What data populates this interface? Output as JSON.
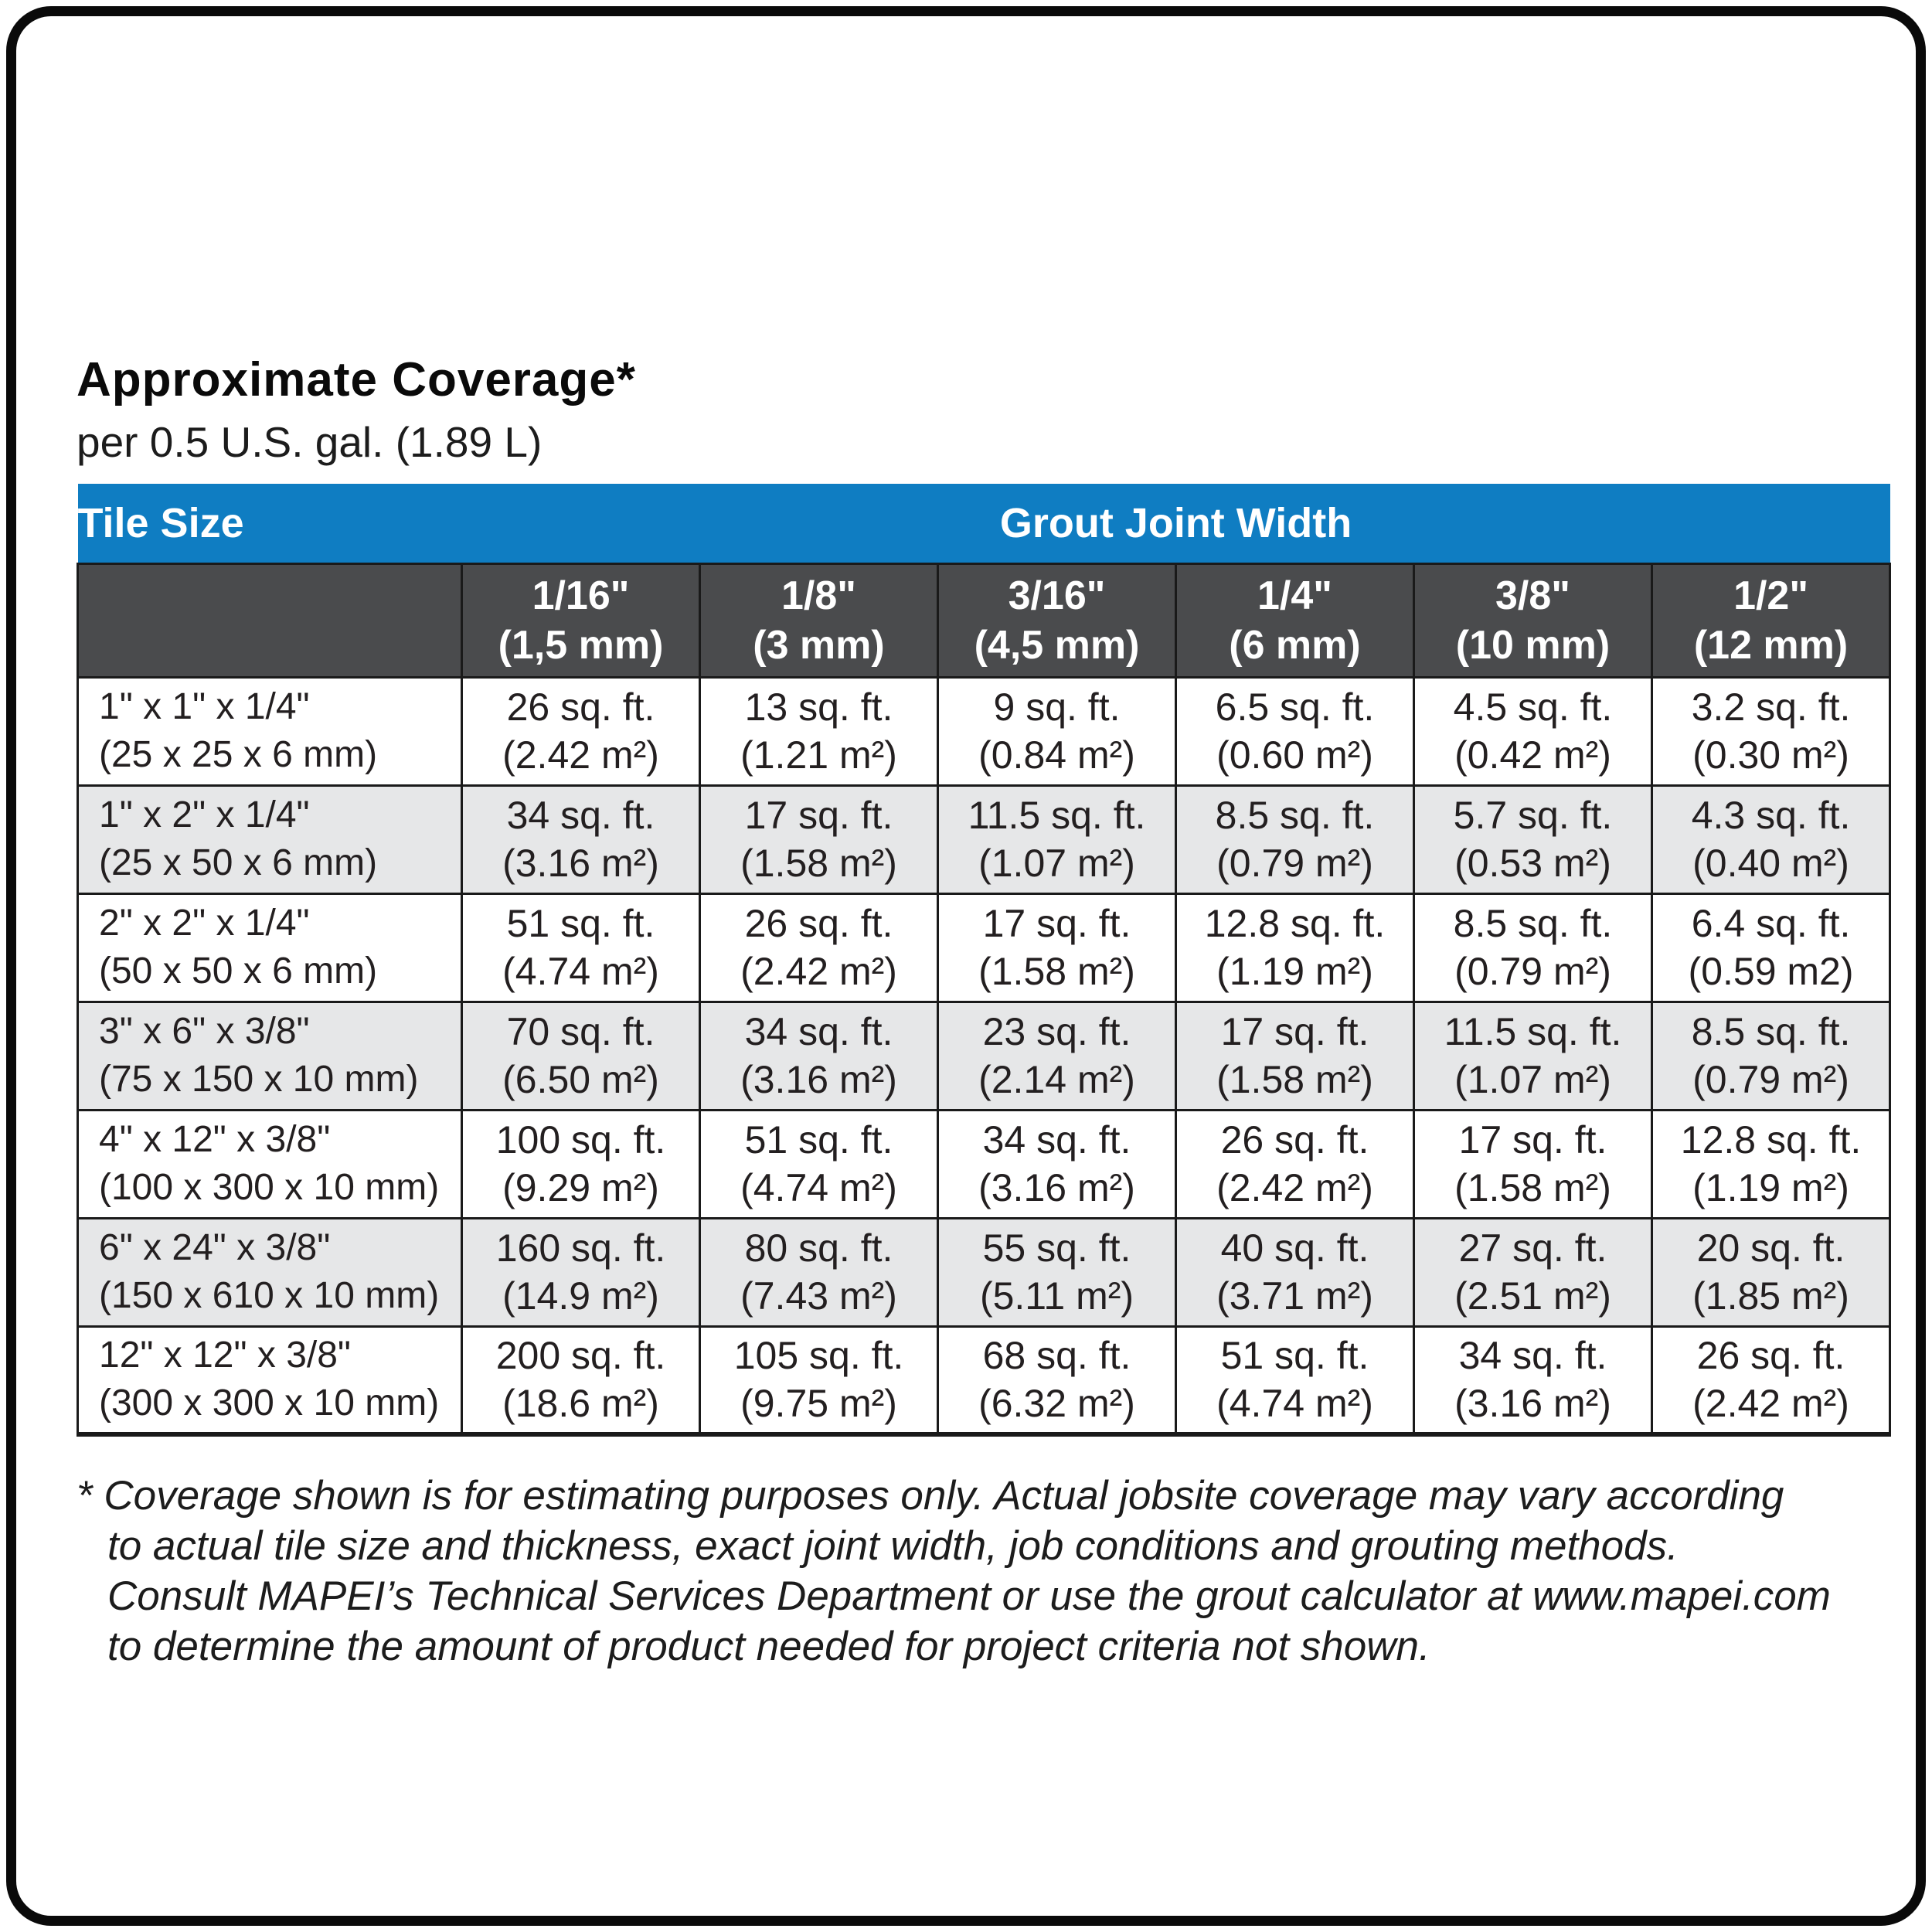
{
  "header": {
    "title": "Approximate Coverage*",
    "subtitle": "per 0.5 U.S. gal. (1.89 L)"
  },
  "table": {
    "tile_size_label": "Tile Size",
    "group_header": "Grout Joint Width",
    "columns": [
      {
        "size": "1/16\"",
        "mm": "(1,5 mm)"
      },
      {
        "size": "1/8\"",
        "mm": "(3 mm)"
      },
      {
        "size": "3/16\"",
        "mm": "(4,5 mm)"
      },
      {
        "size": "1/4\"",
        "mm": "(6 mm)"
      },
      {
        "size": "3/8\"",
        "mm": "(10 mm)"
      },
      {
        "size": "1/2\"",
        "mm": "(12 mm)"
      }
    ],
    "rows": [
      {
        "tile": "1\" x 1\" x 1/4\"",
        "tile_mm": "(25 x 25 x 6 mm)",
        "cells": [
          {
            "sqft": "26 sq. ft.",
            "m2": "(2.42 m²)"
          },
          {
            "sqft": "13 sq. ft.",
            "m2": "(1.21 m²)"
          },
          {
            "sqft": "9 sq. ft.",
            "m2": "(0.84 m²)"
          },
          {
            "sqft": "6.5 sq. ft.",
            "m2": "(0.60 m²)"
          },
          {
            "sqft": "4.5 sq. ft.",
            "m2": "(0.42 m²)"
          },
          {
            "sqft": "3.2 sq. ft.",
            "m2": "(0.30 m²)"
          }
        ]
      },
      {
        "tile": "1\" x 2\" x 1/4\"",
        "tile_mm": "(25 x 50 x 6 mm)",
        "cells": [
          {
            "sqft": "34 sq. ft.",
            "m2": "(3.16 m²)"
          },
          {
            "sqft": "17 sq. ft.",
            "m2": "(1.58 m²)"
          },
          {
            "sqft": "11.5 sq. ft.",
            "m2": "(1.07 m²)"
          },
          {
            "sqft": "8.5 sq. ft.",
            "m2": "(0.79 m²)"
          },
          {
            "sqft": "5.7 sq. ft.",
            "m2": "(0.53 m²)"
          },
          {
            "sqft": "4.3 sq. ft.",
            "m2": "(0.40 m²)"
          }
        ]
      },
      {
        "tile": "2\" x 2\" x 1/4\"",
        "tile_mm": "(50 x 50 x 6 mm)",
        "cells": [
          {
            "sqft": "51 sq. ft.",
            "m2": "(4.74 m²)"
          },
          {
            "sqft": "26 sq. ft.",
            "m2": "(2.42  m²)"
          },
          {
            "sqft": "17 sq. ft.",
            "m2": "(1.58 m²)"
          },
          {
            "sqft": "12.8 sq. ft.",
            "m2": "(1.19 m²)"
          },
          {
            "sqft": "8.5 sq. ft.",
            "m2": "(0.79 m²)"
          },
          {
            "sqft": "6.4 sq. ft.",
            "m2": "(0.59 m2)"
          }
        ]
      },
      {
        "tile": "3\" x 6\" x 3/8\"",
        "tile_mm": "(75 x 150 x 10 mm)",
        "cells": [
          {
            "sqft": "70 sq. ft.",
            "m2": "(6.50 m²)"
          },
          {
            "sqft": "34 sq. ft.",
            "m2": "(3.16 m²)"
          },
          {
            "sqft": "23 sq. ft.",
            "m2": "(2.14 m²)"
          },
          {
            "sqft": "17 sq. ft.",
            "m2": "(1.58 m²)"
          },
          {
            "sqft": "11.5 sq. ft.",
            "m2": "(1.07 m²)"
          },
          {
            "sqft": "8.5 sq. ft.",
            "m2": "(0.79 m²)"
          }
        ]
      },
      {
        "tile": "4\" x 12\" x 3/8\"",
        "tile_mm": "(100 x 300 x 10 mm)",
        "cells": [
          {
            "sqft": "100 sq. ft.",
            "m2": "(9.29 m²)"
          },
          {
            "sqft": "51 sq. ft.",
            "m2": "(4.74 m²)"
          },
          {
            "sqft": "34 sq. ft.",
            "m2": "(3.16 m²)"
          },
          {
            "sqft": "26 sq. ft.",
            "m2": "(2.42 m²)"
          },
          {
            "sqft": "17 sq. ft.",
            "m2": "(1.58 m²)"
          },
          {
            "sqft": "12.8 sq. ft.",
            "m2": "(1.19 m²)"
          }
        ]
      },
      {
        "tile": "6\" x 24\" x 3/8\"",
        "tile_mm": "(150 x 610 x 10 mm)",
        "cells": [
          {
            "sqft": "160 sq. ft.",
            "m2": "(14.9 m²)"
          },
          {
            "sqft": "80 sq. ft.",
            "m2": "(7.43 m²)"
          },
          {
            "sqft": "55 sq. ft.",
            "m2": "(5.11 m²)"
          },
          {
            "sqft": "40 sq. ft.",
            "m2": "(3.71 m²)"
          },
          {
            "sqft": "27 sq. ft.",
            "m2": "(2.51 m²)"
          },
          {
            "sqft": "20 sq. ft.",
            "m2": "(1.85 m²)"
          }
        ]
      },
      {
        "tile": "12\" x 12\" x 3/8\"",
        "tile_mm": "(300 x 300 x 10 mm)",
        "cells": [
          {
            "sqft": "200 sq. ft.",
            "m2": "(18.6 m²)"
          },
          {
            "sqft": "105 sq. ft.",
            "m2": "(9.75 m²)"
          },
          {
            "sqft": "68 sq. ft.",
            "m2": "(6.32 m²)"
          },
          {
            "sqft": "51 sq. ft.",
            "m2": "(4.74 m²)"
          },
          {
            "sqft": "34 sq. ft.",
            "m2": "(3.16 m²)"
          },
          {
            "sqft": "26 sq. ft.",
            "m2": "(2.42 m²)"
          }
        ]
      }
    ]
  },
  "footnote": {
    "lines": [
      "* Coverage shown is for estimating purposes only. Actual jobsite coverage may vary according",
      "to actual tile size and thickness, exact joint width, job conditions and grouting methods.",
      "Consult MAPEI’s Technical Services Department or use the grout calculator at www.mapei.com",
      "to determine the amount of product needed for project criteria not shown."
    ]
  },
  "colors": {
    "header_blue": "#0f7dc2",
    "header_gray": "#4a4b4d",
    "row_alt_gray": "#e6e7e8",
    "grid_black": "#1a1a1a"
  }
}
